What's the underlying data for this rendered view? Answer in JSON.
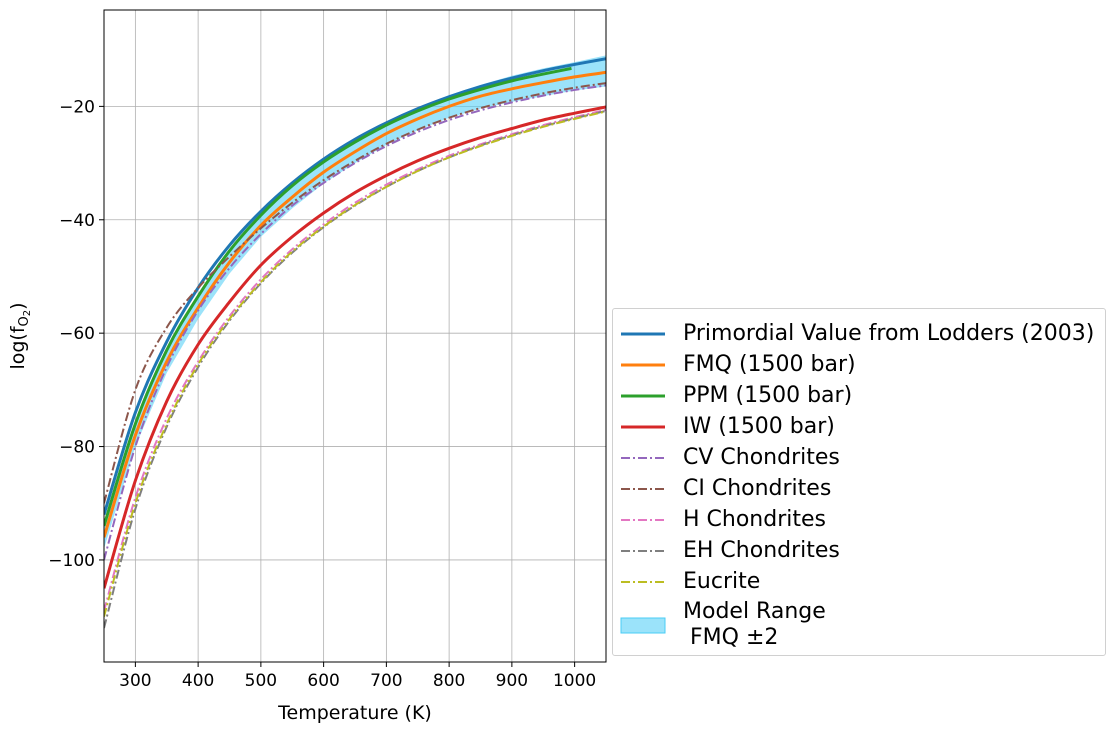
{
  "chart_data": {
    "type": "line",
    "title": "",
    "xlabel": "Temperature (K)",
    "ylabel": "log(f",
    "ylabel_sub": "O",
    "ylabel_sub2": "2",
    "ylabel_end": ")",
    "xlim": [
      250,
      1050
    ],
    "ylim": [
      -118,
      -3
    ],
    "xticks": [
      300,
      400,
      500,
      600,
      700,
      800,
      900,
      1000
    ],
    "yticks": [
      -100,
      -80,
      -60,
      -40,
      -20
    ],
    "ytick_labels": [
      "−100",
      "−80",
      "−60",
      "−40",
      "−20"
    ],
    "grid": true,
    "legend_position": "lower-right-outside",
    "band": {
      "name": "Model Range\n FMQ ±2",
      "color": "#48ccf6",
      "x": [
        250,
        300,
        350,
        400,
        450,
        500,
        550,
        600,
        650,
        700,
        750,
        800,
        850,
        900,
        950,
        1000,
        1050
      ],
      "lower": [
        -98,
        -80,
        -67,
        -57.5,
        -49.5,
        -43,
        -38,
        -33.6,
        -30,
        -26.8,
        -24.2,
        -22,
        -20.4,
        -19.2,
        -18.2,
        -17.2,
        -16.5
      ],
      "upper": [
        -94,
        -76,
        -63,
        -53.5,
        -45.5,
        -39,
        -34,
        -29.6,
        -26,
        -22.8,
        -20.2,
        -18,
        -16.2,
        -14.6,
        -13.3,
        -12.2,
        -11
      ]
    },
    "series": [
      {
        "name": "Primordial Value from Lodders (2003)",
        "color": "#1f77b4",
        "style": "solid",
        "x": [
          250,
          300,
          350,
          400,
          450,
          500,
          550,
          600,
          650,
          700,
          750,
          800,
          850,
          900,
          950,
          1000,
          1050
        ],
        "y": [
          -92,
          -74,
          -61.5,
          -52,
          -44.5,
          -38.5,
          -33.5,
          -29.3,
          -25.8,
          -22.9,
          -20.4,
          -18.3,
          -16.5,
          -15,
          -13.7,
          -12.6,
          -11.6
        ]
      },
      {
        "name": "FMQ (1500 bar)",
        "color": "#ff7f0e",
        "style": "solid",
        "x": [
          250,
          300,
          350,
          400,
          450,
          500,
          550,
          600,
          650,
          700,
          750,
          800,
          850,
          900,
          950,
          1000,
          1050
        ],
        "y": [
          -96,
          -78,
          -65,
          -55.5,
          -47.5,
          -41,
          -36,
          -31.6,
          -28,
          -24.8,
          -22.2,
          -20,
          -18.2,
          -16.9,
          -15.8,
          -14.8,
          -14
        ]
      },
      {
        "name": "PPM (1500 bar)",
        "color": "#2ca02c",
        "style": "solid",
        "x": [
          250,
          300,
          350,
          400,
          450,
          500,
          550,
          600,
          650,
          700,
          750,
          800,
          850,
          900,
          950,
          995
        ],
        "y": [
          -94,
          -76,
          -63,
          -53.5,
          -45.5,
          -39.2,
          -34,
          -29.8,
          -26.3,
          -23.3,
          -20.8,
          -18.7,
          -17,
          -15.5,
          -14.3,
          -13.3
        ]
      },
      {
        "name": "IW (1500 bar)",
        "color": "#d62728",
        "style": "solid",
        "x": [
          250,
          300,
          350,
          400,
          450,
          500,
          550,
          600,
          650,
          700,
          750,
          800,
          850,
          900,
          950,
          1000,
          1050
        ],
        "y": [
          -105,
          -86,
          -72,
          -62,
          -54.5,
          -48,
          -43,
          -38.8,
          -35.2,
          -32.2,
          -29.6,
          -27.4,
          -25.5,
          -23.9,
          -22.4,
          -21.2,
          -20.1
        ]
      },
      {
        "name": "CV Chondrites",
        "color": "#9467bd",
        "style": "dashdot",
        "x": [
          250,
          300,
          350,
          400,
          450,
          500,
          550,
          600,
          650,
          700,
          750,
          800,
          850,
          900,
          950,
          1000,
          1050
        ],
        "y": [
          -100,
          -80,
          -66,
          -56,
          -48.5,
          -42.5,
          -37.5,
          -33.5,
          -30,
          -27,
          -24.5,
          -22.4,
          -20.7,
          -19.3,
          -18.1,
          -17.1,
          -16.3
        ]
      },
      {
        "name": "CI Chondrites",
        "color": "#8c564b",
        "style": "dashdot",
        "x": [
          250,
          300,
          350,
          400,
          450,
          500,
          550,
          600,
          650,
          700,
          750,
          800,
          850,
          900,
          950,
          1000,
          1050
        ],
        "y": [
          -90,
          -70,
          -59,
          -52,
          -46.5,
          -41.5,
          -37,
          -33,
          -29.6,
          -26.6,
          -24.1,
          -22,
          -20.3,
          -18.9,
          -17.7,
          -16.7,
          -15.9
        ]
      },
      {
        "name": "H Chondrites",
        "color": "#e377c2",
        "style": "dashdot",
        "x": [
          250,
          300,
          350,
          400,
          450,
          500,
          550,
          600,
          650,
          700,
          750,
          800,
          850,
          900,
          950,
          1000,
          1050
        ],
        "y": [
          -109,
          -89,
          -75,
          -65,
          -57,
          -50.5,
          -45.2,
          -40.8,
          -37,
          -33.8,
          -31.1,
          -28.7,
          -26.7,
          -24.9,
          -23.3,
          -21.9,
          -20.6
        ]
      },
      {
        "name": "EH Chondrites",
        "color": "#7f7f7f",
        "style": "dashdot",
        "x": [
          250,
          300,
          350,
          400,
          450,
          500,
          550,
          600,
          650,
          700,
          750,
          800,
          850,
          900,
          950,
          1000,
          1050
        ],
        "y": [
          -112,
          -91,
          -76.5,
          -66,
          -57.8,
          -51.2,
          -45.8,
          -41.3,
          -37.5,
          -34.2,
          -31.4,
          -29,
          -26.9,
          -25.1,
          -23.5,
          -22.1,
          -20.8
        ]
      },
      {
        "name": "Eucrite",
        "color": "#bcbd22",
        "style": "dashdot",
        "x": [
          250,
          300,
          350,
          400,
          450,
          500,
          550,
          600,
          650,
          700,
          750,
          800,
          850,
          900,
          950,
          1000,
          1050
        ],
        "y": [
          -110,
          -90,
          -76,
          -65.5,
          -57.5,
          -51,
          -45.6,
          -41.2,
          -37.4,
          -34.2,
          -31.4,
          -29,
          -27,
          -25.2,
          -23.6,
          -22.2,
          -20.9
        ]
      }
    ]
  }
}
